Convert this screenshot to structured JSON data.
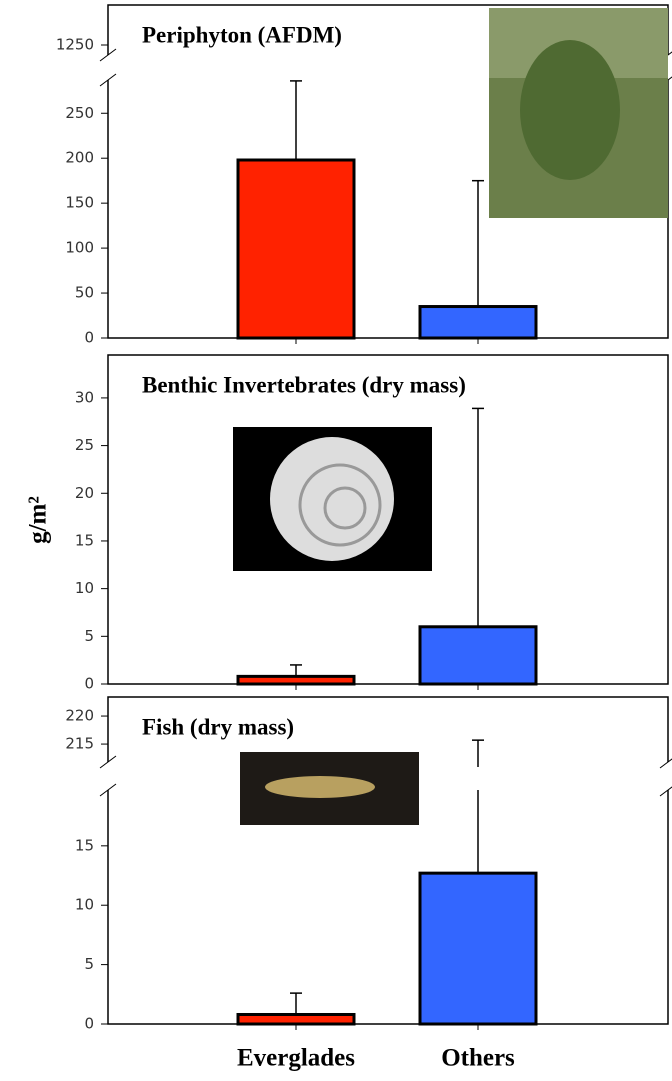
{
  "chart_data": [
    {
      "type": "bar",
      "title": "Periphyton (AFDM)",
      "values": [
        198,
        35
      ],
      "errors": [
        88,
        140
      ],
      "colors": [
        "#ff2200",
        "#3366ff"
      ],
      "ylim": [
        0,
        1294
      ],
      "ybreak": [
        287,
        1239
      ],
      "yticks": [
        0,
        50,
        100,
        150,
        200,
        250,
        1250
      ]
    },
    {
      "type": "bar",
      "title": "Benthic Invertebrates (dry mass)",
      "ylabel": "g/m²",
      "values": [
        0.8,
        6
      ],
      "errors": [
        1.2,
        22.9
      ],
      "colors": [
        "#ff2200",
        "#3366ff"
      ],
      "ylim": [
        0,
        34.5
      ],
      "yticks": [
        0,
        5,
        10,
        15,
        20,
        25,
        30
      ]
    },
    {
      "type": "bar",
      "title": "Fish (dry mass)",
      "categories": [
        "Everglades",
        "Others"
      ],
      "values": [
        0.8,
        12.7
      ],
      "errors": [
        1.8,
        203
      ],
      "colors": [
        "#ff2200",
        "#3366ff"
      ],
      "ylim": [
        0,
        223.4
      ],
      "ybreak": [
        19.7,
        211.8
      ],
      "yticks": [
        0,
        5,
        10,
        15,
        215,
        220
      ]
    }
  ]
}
